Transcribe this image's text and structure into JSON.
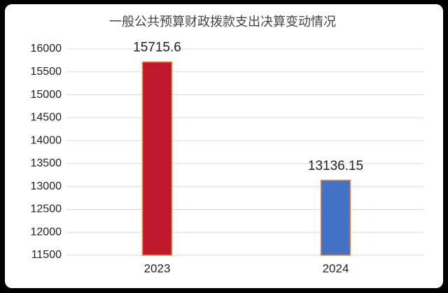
{
  "chart_data": {
    "type": "bar",
    "title": "一般公共预算财政拨款支出决算变动情况",
    "categories": [
      "2023",
      "2024"
    ],
    "values": [
      15715.6,
      13136.15
    ],
    "colors": [
      "#c0192e",
      "#4472c4"
    ],
    "ylim": [
      11500,
      16000
    ],
    "yticks": [
      11500,
      12000,
      12500,
      13000,
      13500,
      14000,
      14500,
      15000,
      15500,
      16000
    ],
    "grid": true
  }
}
